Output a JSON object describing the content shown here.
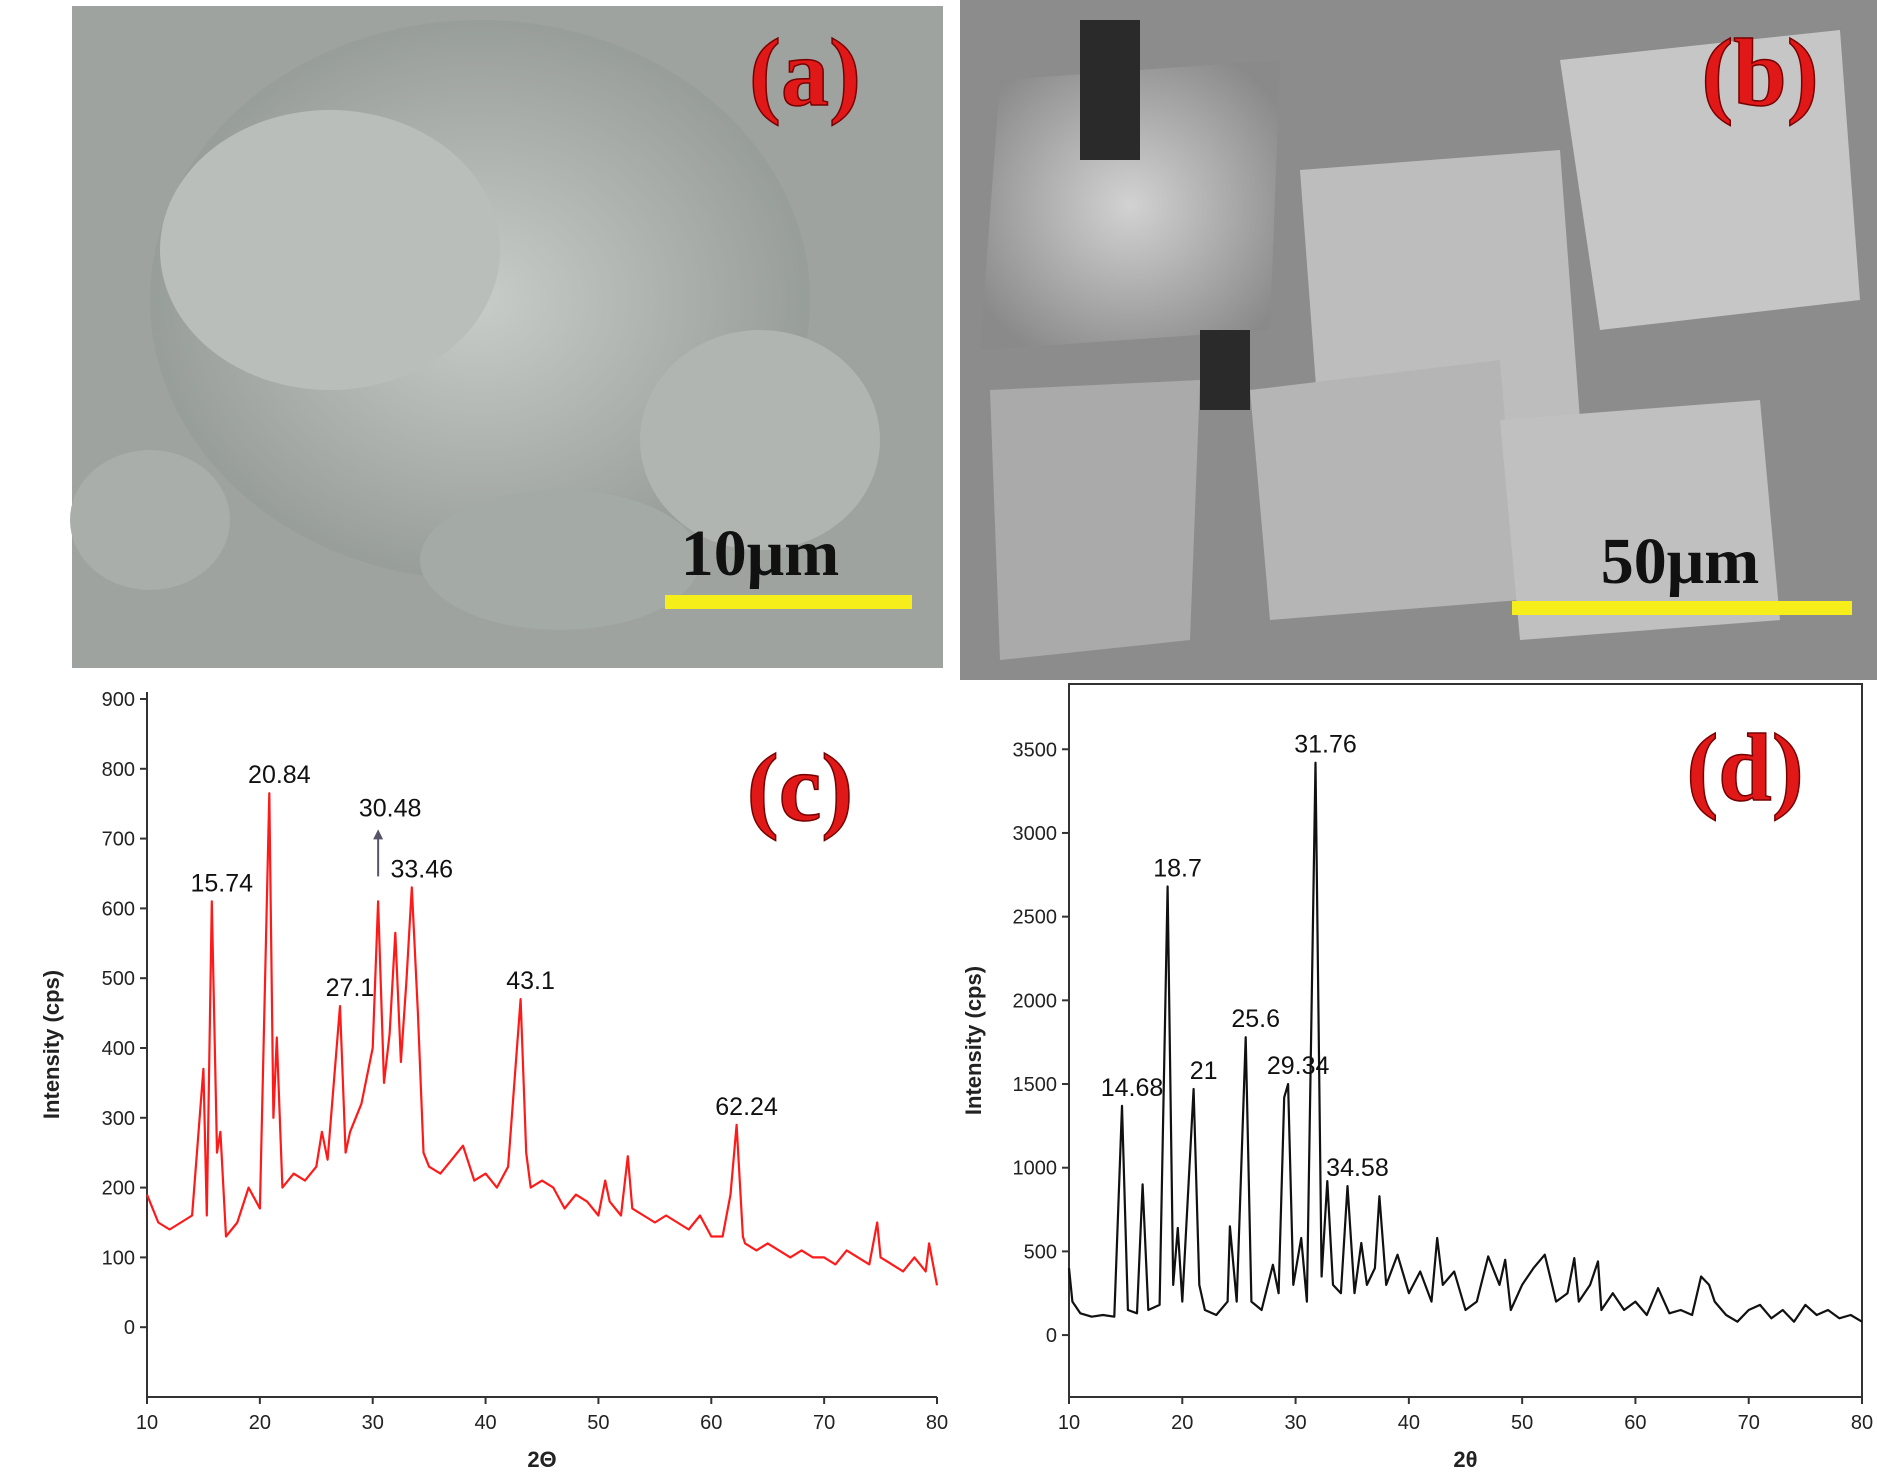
{
  "panels": [
    {
      "label": "(a)",
      "scale_bar": "10μm"
    },
    {
      "label": "(b)",
      "scale_bar": "50μm"
    }
  ],
  "chart_data": [
    {
      "type": "line",
      "panel_label": "(c)",
      "x_label": "2Θ",
      "y_label": "Intensity (cps)",
      "color": "#ff1a1a",
      "frame": "axes",
      "xlim": [
        10,
        80
      ],
      "ylim": [
        -100,
        910
      ],
      "xticks": [
        10,
        20,
        30,
        40,
        50,
        60,
        70,
        80
      ],
      "yticks": [
        0,
        100,
        200,
        300,
        400,
        500,
        600,
        700,
        800,
        900
      ],
      "x": [
        10,
        11,
        12,
        13,
        14,
        15,
        15.3,
        15.74,
        16.2,
        16.5,
        17,
        18,
        19,
        20,
        20.84,
        21.2,
        21.5,
        22,
        23,
        24,
        25,
        25.5,
        26,
        27.1,
        27.6,
        28,
        29,
        30,
        30.48,
        31,
        31.5,
        32,
        32.5,
        33,
        33.46,
        34,
        34.5,
        35,
        36,
        37,
        38,
        39,
        40,
        41,
        42,
        43.1,
        43.6,
        44,
        45,
        46,
        47,
        48,
        49,
        50,
        50.6,
        51,
        52,
        52.6,
        53,
        54,
        55,
        56,
        57,
        58,
        59,
        60,
        61,
        61.7,
        62.24,
        62.8,
        63,
        64,
        65,
        66,
        67,
        68,
        69,
        70,
        71,
        72,
        73,
        74,
        74.7,
        75,
        76,
        77,
        78,
        79,
        79.3,
        80
      ],
      "values": [
        190,
        150,
        140,
        150,
        160,
        370,
        160,
        610,
        250,
        280,
        130,
        150,
        200,
        170,
        765,
        300,
        415,
        200,
        220,
        210,
        230,
        280,
        240,
        460,
        250,
        280,
        320,
        400,
        610,
        350,
        420,
        565,
        380,
        500,
        630,
        450,
        250,
        230,
        220,
        240,
        260,
        210,
        220,
        200,
        230,
        470,
        250,
        200,
        210,
        200,
        170,
        190,
        180,
        160,
        210,
        180,
        160,
        245,
        170,
        160,
        150,
        160,
        150,
        140,
        160,
        130,
        130,
        190,
        290,
        130,
        120,
        110,
        120,
        110,
        100,
        110,
        100,
        100,
        90,
        110,
        100,
        90,
        150,
        100,
        90,
        80,
        100,
        80,
        120,
        60
      ],
      "annotations": [
        {
          "text": "15.74",
          "x": 15.74,
          "y": 610
        },
        {
          "text": "20.84",
          "x": 20.84,
          "y": 765
        },
        {
          "text": "30.48",
          "x": 30.48,
          "y": 610,
          "arrow": true
        },
        {
          "text": "33.46",
          "x": 33.46,
          "y": 630
        },
        {
          "text": "27.1",
          "x": 27.1,
          "y": 460
        },
        {
          "text": "43.1",
          "x": 43.1,
          "y": 470
        },
        {
          "text": "62.24",
          "x": 62.24,
          "y": 290
        }
      ]
    },
    {
      "type": "line",
      "panel_label": "(d)",
      "x_label": "2θ",
      "y_label": "Intensity (cps)",
      "color": "#111111",
      "frame": "box",
      "xlim": [
        10,
        80
      ],
      "ylim": [
        -370,
        3890
      ],
      "xticks": [
        10,
        20,
        30,
        40,
        50,
        60,
        70,
        80
      ],
      "yticks": [
        0,
        500,
        1000,
        1500,
        2000,
        2500,
        3000,
        3500
      ],
      "x": [
        10,
        10.3,
        11,
        12,
        13,
        14,
        14.68,
        15.2,
        16,
        16.5,
        17,
        18,
        18.7,
        19.2,
        19.6,
        20,
        21,
        21.5,
        22,
        23,
        24,
        24.2,
        24.8,
        25.6,
        26.1,
        27,
        28,
        28.5,
        29,
        29.34,
        29.8,
        30.5,
        31,
        31.76,
        32.3,
        32.8,
        33.3,
        34,
        34.58,
        35.2,
        35.8,
        36.3,
        37,
        37.4,
        38,
        39,
        40,
        41,
        42,
        42.5,
        43,
        44,
        45,
        46,
        47,
        48,
        48.5,
        49,
        50,
        51,
        52,
        53,
        54,
        54.6,
        55,
        56,
        56.7,
        57,
        58,
        59,
        60,
        61,
        62,
        63,
        64,
        65,
        65.8,
        66.5,
        67,
        68,
        69,
        70,
        71,
        72,
        73,
        74,
        75,
        76,
        77,
        78,
        79,
        80
      ],
      "values": [
        400,
        200,
        130,
        110,
        120,
        110,
        1370,
        150,
        130,
        900,
        150,
        180,
        2680,
        300,
        640,
        200,
        1470,
        300,
        150,
        120,
        200,
        650,
        200,
        1780,
        200,
        150,
        420,
        250,
        1420,
        1500,
        300,
        580,
        200,
        3420,
        350,
        920,
        300,
        250,
        890,
        250,
        550,
        300,
        400,
        830,
        300,
        480,
        250,
        380,
        200,
        580,
        300,
        380,
        150,
        200,
        470,
        300,
        450,
        150,
        300,
        400,
        480,
        200,
        250,
        460,
        200,
        300,
        440,
        150,
        250,
        150,
        200,
        120,
        280,
        130,
        150,
        120,
        350,
        300,
        200,
        120,
        80,
        150,
        180,
        100,
        150,
        80,
        180,
        120,
        150,
        100,
        120,
        80
      ],
      "annotations": [
        {
          "text": "14.68",
          "x": 14.68,
          "y": 1370
        },
        {
          "text": "18.7",
          "x": 18.7,
          "y": 2680
        },
        {
          "text": "21",
          "x": 21,
          "y": 1470
        },
        {
          "text": "25.6",
          "x": 25.6,
          "y": 1780
        },
        {
          "text": "29.34",
          "x": 29.34,
          "y": 1500
        },
        {
          "text": "31.76",
          "x": 31.76,
          "y": 3420
        },
        {
          "text": "34.58",
          "x": 34.58,
          "y": 890
        }
      ]
    }
  ]
}
